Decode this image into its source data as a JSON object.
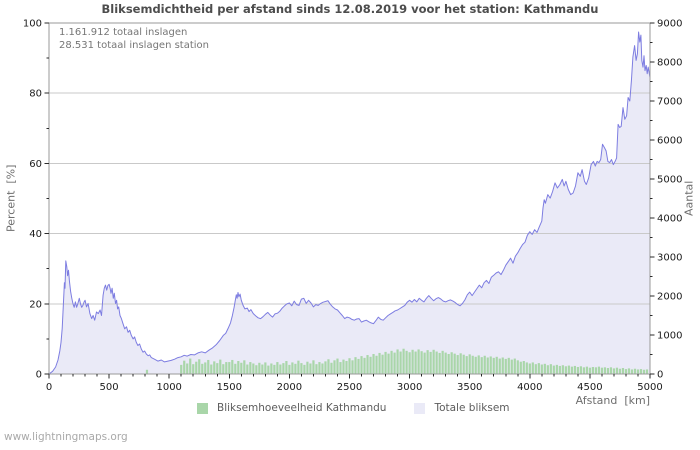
{
  "chart": {
    "title": "Bliksemdichtheid per afstand sinds 12.08.2019 voor het station: Kathmandu",
    "annotation_total": "1.161.912 totaal inslagen",
    "annotation_station": "28.531 totaal inslagen station",
    "y_left_label": "Percent  [%]",
    "y_right_label": "Aantal",
    "x_label": "Afstand  [km]",
    "legend": [
      {
        "label": "Bliksemhoeveelheid Kathmandu",
        "color": "#a9d6a9"
      },
      {
        "label": "Totale bliksem",
        "color": "#eaeaf7"
      }
    ],
    "watermark": "www.lightningmaps.org"
  },
  "colors": {
    "grid": "#c9c9c9",
    "border": "#9a9a9a",
    "tick": "#2a2a2a",
    "tick_label": "#1c1c1c",
    "line": "#7d7de1",
    "area_fill": "#eaeaf7",
    "bars": "#a9d6a9"
  },
  "chart_data": {
    "type": "line",
    "title": "Bliksemdichtheid per afstand sinds 12.08.2019 voor het station: Kathmandu",
    "annotations": [
      "1.161.912 totaal inslagen",
      "28.531 totaal inslagen station"
    ],
    "legend_position": "bottom",
    "grid": "horizontal-major-only",
    "x_axis": {
      "label": "Afstand [km]",
      "min": 0,
      "max": 5000,
      "major_step": 500,
      "minor_step": 100,
      "tick_values": [
        0,
        500,
        1000,
        1500,
        2000,
        2500,
        3000,
        3500,
        4000,
        4500,
        5000
      ],
      "tick_labels": [
        "0",
        "500",
        "1000",
        "1500",
        "2000",
        "2500",
        "3000",
        "3500",
        "4000",
        "4500",
        "5000"
      ]
    },
    "y_left_axis": {
      "label": "Percent [%]",
      "min": 0,
      "max": 100,
      "major_step": 20,
      "minor_step": 10,
      "grid_at": [
        20,
        40,
        60,
        80
      ],
      "tick_values": [
        0,
        20,
        40,
        60,
        80,
        100
      ],
      "tick_labels": [
        "0",
        "20",
        "40",
        "60",
        "80",
        "100"
      ]
    },
    "y_right_axis": {
      "label": "Aantal",
      "min": 0,
      "max": 9000,
      "major_step": 1000,
      "minor_step": 500,
      "tick_values": [
        0,
        1000,
        2000,
        3000,
        4000,
        5000,
        6000,
        7000,
        8000,
        9000
      ],
      "tick_labels": [
        "0",
        "1000",
        "2000",
        "3000",
        "4000",
        "5000",
        "6000",
        "7000",
        "8000",
        "9000"
      ]
    },
    "series": [
      {
        "name": "Totale bliksem",
        "type": "area_line",
        "axis": "right",
        "line_color": "#7d7de1",
        "fill_color": "#eaeaf7",
        "x_km": [
          0,
          30,
          55,
          75,
          90,
          100,
          110,
          120,
          128,
          133,
          140,
          148,
          155,
          162,
          170,
          180,
          190,
          200,
          210,
          220,
          230,
          240,
          252,
          262,
          272,
          282,
          292,
          300,
          312,
          325,
          340,
          355,
          367,
          380,
          395,
          410,
          425,
          437,
          450,
          460,
          470,
          480,
          490,
          500,
          508,
          516,
          525,
          535,
          543,
          553,
          562,
          571,
          580,
          591,
          602,
          616,
          630,
          645,
          658,
          671,
          685,
          700,
          712,
          726,
          740,
          754,
          768,
          782,
          795,
          810,
          825,
          838,
          851,
          878,
          906,
          934,
          961,
          989,
          1017,
          1045,
          1072,
          1100,
          1125,
          1150,
          1180,
          1210,
          1240,
          1270,
          1300,
          1330,
          1360,
          1390,
          1420,
          1450,
          1470,
          1490,
          1510,
          1525,
          1540,
          1550,
          1558,
          1565,
          1572,
          1580,
          1590,
          1600,
          1615,
          1630,
          1650,
          1665,
          1680,
          1700,
          1720,
          1740,
          1760,
          1780,
          1800,
          1820,
          1840,
          1860,
          1880,
          1900,
          1920,
          1940,
          1960,
          1980,
          2000,
          2020,
          2040,
          2060,
          2080,
          2100,
          2120,
          2140,
          2160,
          2180,
          2200,
          2220,
          2240,
          2260,
          2280,
          2300,
          2320,
          2340,
          2360,
          2380,
          2400,
          2420,
          2440,
          2460,
          2480,
          2500,
          2520,
          2540,
          2560,
          2580,
          2600,
          2620,
          2640,
          2660,
          2680,
          2700,
          2720,
          2740,
          2760,
          2780,
          2800,
          2820,
          2840,
          2860,
          2880,
          2900,
          2920,
          2940,
          2960,
          2980,
          3000,
          3020,
          3040,
          3060,
          3080,
          3100,
          3120,
          3140,
          3160,
          3180,
          3200,
          3220,
          3240,
          3260,
          3280,
          3300,
          3320,
          3340,
          3360,
          3380,
          3400,
          3420,
          3440,
          3460,
          3480,
          3500,
          3520,
          3540,
          3560,
          3580,
          3600,
          3620,
          3640,
          3660,
          3680,
          3700,
          3720,
          3740,
          3760,
          3780,
          3800,
          3820,
          3840,
          3860,
          3880,
          3900,
          3920,
          3940,
          3960,
          3980,
          4000,
          4020,
          4040,
          4060,
          4080,
          4100,
          4110,
          4120,
          4130,
          4150,
          4170,
          4190,
          4210,
          4230,
          4250,
          4270,
          4285,
          4300,
          4320,
          4340,
          4360,
          4380,
          4400,
          4420,
          4435,
          4455,
          4470,
          4490,
          4510,
          4530,
          4545,
          4560,
          4575,
          4590,
          4605,
          4620,
          4635,
          4650,
          4665,
          4680,
          4695,
          4710,
          4722,
          4735,
          4748,
          4760,
          4775,
          4790,
          4805,
          4818,
          4832,
          4845,
          4858,
          4872,
          4884,
          4895,
          4905,
          4915,
          4924,
          4932,
          4942,
          4950,
          4958,
          4968,
          4977,
          4985,
          5000
        ],
        "aantal": [
          0,
          70,
          180,
          360,
          590,
          810,
          1170,
          1800,
          2340,
          2200,
          2900,
          2750,
          2520,
          2660,
          2390,
          2120,
          1940,
          1800,
          1710,
          1850,
          1710,
          1800,
          1940,
          1800,
          1710,
          1760,
          1850,
          1890,
          1720,
          1810,
          1550,
          1420,
          1500,
          1380,
          1590,
          1550,
          1640,
          1500,
          2020,
          2200,
          2280,
          2150,
          2270,
          2300,
          2200,
          2070,
          2200,
          1940,
          2070,
          1810,
          1890,
          1670,
          1720,
          1500,
          1420,
          1290,
          1160,
          1210,
          1070,
          1120,
          990,
          900,
          950,
          810,
          730,
          770,
          640,
          560,
          590,
          510,
          470,
          490,
          420,
          380,
          330,
          360,
          310,
          330,
          350,
          380,
          420,
          440,
          480,
          460,
          500,
          490,
          540,
          570,
          540,
          610,
          670,
          750,
          860,
          990,
          1040,
          1170,
          1310,
          1490,
          1710,
          1890,
          2030,
          1940,
          2090,
          1980,
          2050,
          1890,
          1760,
          1670,
          1690,
          1600,
          1650,
          1550,
          1490,
          1440,
          1420,
          1470,
          1530,
          1580,
          1510,
          1460,
          1540,
          1560,
          1610,
          1690,
          1750,
          1800,
          1820,
          1750,
          1870,
          1780,
          1760,
          1920,
          1940,
          1810,
          1890,
          1820,
          1720,
          1780,
          1760,
          1810,
          1840,
          1860,
          1880,
          1790,
          1720,
          1670,
          1640,
          1570,
          1500,
          1420,
          1460,
          1440,
          1400,
          1380,
          1410,
          1420,
          1330,
          1360,
          1380,
          1340,
          1310,
          1290,
          1370,
          1460,
          1400,
          1380,
          1440,
          1500,
          1540,
          1580,
          1620,
          1640,
          1680,
          1720,
          1760,
          1840,
          1890,
          1840,
          1910,
          1850,
          1940,
          1890,
          1850,
          1940,
          2010,
          1940,
          1880,
          1930,
          1960,
          1920,
          1870,
          1850,
          1880,
          1900,
          1870,
          1830,
          1780,
          1750,
          1810,
          1900,
          2030,
          2100,
          2010,
          2100,
          2190,
          2280,
          2210,
          2340,
          2400,
          2320,
          2480,
          2530,
          2590,
          2620,
          2550,
          2660,
          2790,
          2880,
          2970,
          2840,
          3020,
          3110,
          3220,
          3320,
          3380,
          3560,
          3650,
          3580,
          3700,
          3630,
          3780,
          3920,
          4260,
          4470,
          4380,
          4600,
          4510,
          4680,
          4900,
          4770,
          4860,
          4990,
          4820,
          4940,
          4730,
          4600,
          4640,
          4820,
          5160,
          5070,
          5240,
          4940,
          4860,
          5030,
          5370,
          5450,
          5330,
          5450,
          5420,
          5500,
          5890,
          5810,
          5720,
          5450,
          5420,
          5500,
          5370,
          5450,
          5540,
          6400,
          6320,
          6350,
          6830,
          6530,
          6620,
          7090,
          7000,
          7520,
          8130,
          8420,
          8040,
          8210,
          8770,
          8510,
          8690,
          8040,
          7870,
          8160,
          7780,
          7910,
          7700,
          7870,
          7600
        ]
      },
      {
        "name": "Bliksemhoeveelheid Kathmandu",
        "type": "bars",
        "axis": "left",
        "color": "#a9d6a9",
        "x0_km": 1100,
        "dx_km": 25,
        "percent": [
          2.6,
          3.8,
          3.0,
          4.4,
          2.8,
          3.5,
          4.2,
          2.9,
          3.3,
          4.0,
          2.7,
          3.6,
          3.1,
          4.1,
          2.8,
          3.4,
          3.4,
          4.0,
          2.9,
          3.7,
          3.2,
          3.9,
          2.7,
          3.4,
          3.0,
          2.5,
          3.2,
          2.7,
          3.3,
          2.4,
          3.0,
          2.6,
          3.4,
          2.7,
          3.1,
          3.7,
          2.6,
          3.3,
          2.9,
          3.8,
          3.1,
          2.6,
          3.5,
          3.0,
          3.9,
          2.8,
          3.4,
          3.0,
          3.6,
          4.2,
          3.2,
          3.9,
          4.4,
          3.4,
          4.1,
          3.7,
          4.5,
          3.9,
          4.8,
          4.3,
          5.1,
          4.6,
          5.4,
          4.9,
          5.7,
          5.2,
          6.0,
          5.5,
          6.3,
          5.8,
          6.6,
          6.1,
          7.0,
          6.4,
          7.2,
          6.6,
          6.2,
          6.9,
          6.4,
          7.0,
          6.5,
          6.1,
          6.8,
          6.3,
          6.9,
          6.4,
          6.0,
          6.6,
          6.1,
          5.7,
          6.2,
          5.8,
          5.4,
          5.9,
          5.5,
          5.1,
          5.6,
          5.2,
          4.9,
          5.3,
          4.8,
          5.2,
          4.7,
          5.0,
          4.6,
          4.9,
          4.4,
          4.7,
          4.3,
          4.6,
          4.1,
          4.4,
          3.9,
          3.5,
          3.7,
          3.3,
          3.0,
          3.3,
          2.8,
          3.1,
          2.7,
          2.9,
          2.5,
          2.8,
          2.4,
          2.6,
          2.3,
          2.5,
          2.2,
          2.4,
          2.1,
          2.3,
          2.0,
          2.2,
          1.9,
          2.1,
          1.8,
          2.0,
          1.9,
          2.1,
          1.8,
          1.9,
          1.7,
          1.9,
          1.6,
          1.8,
          1.5,
          1.7,
          1.4,
          1.6,
          1.3,
          1.5,
          1.3,
          1.4,
          1.2,
          1.3
        ],
        "extra_bars": [
          {
            "x_km": 815,
            "percent": 1.2
          }
        ]
      }
    ]
  }
}
